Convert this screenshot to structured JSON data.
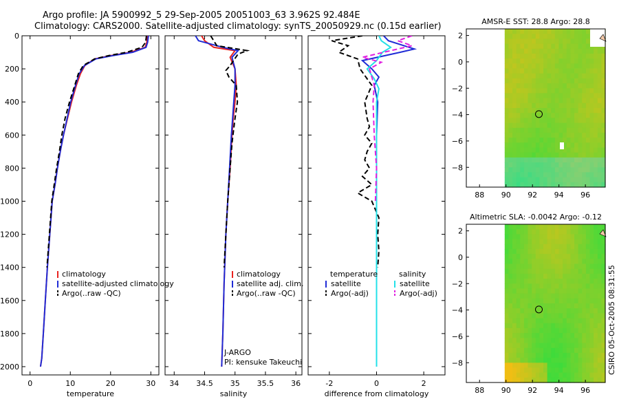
{
  "header": {
    "line1": "Argo profile: JA 5900992_5 29-Sep-2005 20051003_63 3.962S 92.484E",
    "line2": "Climatology: CARS2000. Satellite-adjusted climatology: synTS_20050929.nc (0.15d earlier)"
  },
  "side_stamp": "CSIRO 05-Oct-2005 08:31:55",
  "colors": {
    "climatology": "#e8221f",
    "satellite": "#1f2bd6",
    "argo": "#000000",
    "sal_satellite": "#22e0e8",
    "sal_argo": "#e020e0"
  },
  "chart_data": [
    {
      "type": "line",
      "panel": "temperature",
      "xlabel": "temperature",
      "ylabel": "",
      "xlim": [
        -2,
        32
      ],
      "ylim": [
        2050,
        0
      ],
      "y_inverted": true,
      "xticks": [
        0,
        10,
        20,
        30
      ],
      "yticks": [
        0,
        200,
        400,
        600,
        800,
        1000,
        1200,
        1400,
        1600,
        1800,
        2000
      ],
      "legend": [
        "climatology",
        "satellite-adjusted climatology",
        "Argo(..raw -QC)"
      ],
      "series": [
        {
          "name": "climatology",
          "style": "solid",
          "color": "#e8221f",
          "x": [
            29.1,
            29.0,
            28.6,
            25.0,
            20.0,
            16.0,
            13.6,
            12.5,
            11.5,
            10.3,
            9.3,
            8.3,
            7.5,
            6.8,
            6.2,
            5.5,
            4.9,
            4.3,
            3.8,
            3.3,
            2.9,
            2.6
          ],
          "y": [
            0,
            40,
            70,
            100,
            120,
            140,
            180,
            230,
            300,
            400,
            500,
            600,
            700,
            800,
            900,
            1000,
            1200,
            1400,
            1600,
            1800,
            1950,
            2000
          ]
        },
        {
          "name": "satellite-adjusted climatology",
          "style": "solid",
          "color": "#1f2bd6",
          "x": [
            29.4,
            29.2,
            28.8,
            25.5,
            20.5,
            16.3,
            13.5,
            12.2,
            11.3,
            10.1,
            9.2,
            8.3,
            7.5,
            6.8,
            6.2,
            5.5,
            4.9,
            4.3,
            3.8,
            3.3,
            2.9,
            2.6
          ],
          "y": [
            0,
            40,
            70,
            100,
            120,
            140,
            180,
            230,
            300,
            400,
            500,
            600,
            700,
            800,
            900,
            1000,
            1200,
            1400,
            1600,
            1800,
            1950,
            2000
          ]
        },
        {
          "name": "Argo(..raw -QC)",
          "style": "dashed",
          "color": "#000000",
          "x": [
            28.9,
            28.7,
            27.8,
            24.0,
            19.5,
            16.0,
            13.2,
            12.0,
            11.1,
            9.8,
            8.7,
            7.9,
            7.3,
            6.6,
            6.0,
            5.4,
            4.8,
            4.2
          ],
          "y": [
            0,
            40,
            70,
            100,
            120,
            140,
            180,
            230,
            300,
            400,
            500,
            600,
            700,
            800,
            900,
            1000,
            1200,
            1400
          ]
        }
      ]
    },
    {
      "type": "line",
      "panel": "salinity",
      "xlabel": "salinity",
      "ylabel": "",
      "xlim": [
        33.85,
        36.1
      ],
      "ylim": [
        2050,
        0
      ],
      "y_inverted": true,
      "xticks": [
        34,
        34.5,
        35,
        35.5,
        36
      ],
      "legend": [
        "climatology",
        "satellite adj. clim.",
        "Argo(..raw -QC)"
      ],
      "annotations": [
        "J-ARGO",
        "PI: kensuke Takeuchi"
      ],
      "series": [
        {
          "name": "climatology",
          "style": "solid",
          "color": "#e8221f",
          "x": [
            34.45,
            34.5,
            34.65,
            35.0,
            34.92,
            35.0,
            35.02,
            35.0,
            34.97,
            34.95,
            34.92,
            34.88,
            34.85,
            34.82,
            34.8,
            34.78
          ],
          "y": [
            0,
            30,
            70,
            90,
            130,
            200,
            300,
            400,
            500,
            600,
            800,
            1000,
            1200,
            1500,
            1800,
            2000
          ]
        },
        {
          "name": "satellite adj. clim.",
          "style": "solid",
          "color": "#1f2bd6",
          "x": [
            34.35,
            34.4,
            34.8,
            35.05,
            34.95,
            35.0,
            35.0,
            34.98,
            34.96,
            34.94,
            34.91,
            34.88,
            34.85,
            34.82,
            34.8,
            34.78
          ],
          "y": [
            0,
            30,
            70,
            90,
            130,
            200,
            300,
            400,
            500,
            600,
            800,
            1000,
            1200,
            1500,
            1800,
            2000
          ]
        },
        {
          "name": "Argo(..raw -QC)",
          "style": "dashed",
          "color": "#000000",
          "x": [
            34.6,
            34.7,
            35.2,
            35.05,
            34.92,
            34.85,
            34.9,
            35.02,
            35.04,
            35.0,
            34.95,
            34.92,
            34.88,
            34.85,
            34.82
          ],
          "y": [
            0,
            60,
            90,
            110,
            180,
            210,
            250,
            300,
            400,
            500,
            650,
            800,
            1000,
            1200,
            1400
          ]
        }
      ]
    },
    {
      "type": "line",
      "panel": "difference",
      "xlabel": "difference from climatology",
      "ylabel": "",
      "xlim": [
        -2.9,
        2.9
      ],
      "ylim": [
        2050,
        0
      ],
      "y_inverted": true,
      "xticks": [
        -2,
        0,
        2
      ],
      "legend": [
        "temperature",
        "satellite",
        "Argo(-adj)",
        "salinity",
        "satellite",
        "Argo(-adj)"
      ],
      "series": [
        {
          "name": "temperature satellite",
          "style": "solid",
          "color": "#1f2bd6",
          "x": [
            0.3,
            0.5,
            1.6,
            1.0,
            -0.6,
            -0.2,
            0.1,
            -0.1,
            0.05,
            0.0,
            0.0,
            0.0,
            0.0
          ],
          "y": [
            0,
            30,
            80,
            100,
            150,
            200,
            250,
            300,
            400,
            600,
            1000,
            1500,
            2000
          ]
        },
        {
          "name": "temperature Argo(-adj)",
          "style": "dashed",
          "color": "#000000",
          "x": [
            -0.6,
            -1.9,
            -1.2,
            -1.6,
            -0.8,
            -0.7,
            -0.2,
            -0.5,
            -0.4,
            -0.3,
            -0.5,
            -0.2,
            -0.4,
            -0.5,
            -0.3,
            -0.6,
            -0.2,
            -0.8,
            -0.2,
            0.1,
            0.05,
            0.1,
            0.05
          ],
          "y": [
            0,
            30,
            60,
            100,
            140,
            200,
            300,
            400,
            500,
            550,
            600,
            650,
            700,
            750,
            800,
            850,
            900,
            950,
            1000,
            1100,
            1200,
            1300,
            1400
          ]
        },
        {
          "name": "salinity satellite",
          "style": "solid",
          "color": "#22e0e8",
          "x": [
            0.1,
            0.2,
            0.6,
            0.25,
            0.0,
            -0.4,
            -0.1,
            0.1,
            0.0,
            0.0,
            0.0,
            0.0
          ],
          "y": [
            0,
            30,
            70,
            100,
            150,
            200,
            260,
            320,
            400,
            800,
            1500,
            2000
          ]
        },
        {
          "name": "salinity Argo(-adj)",
          "style": "dashed",
          "color": "#e020e0",
          "x": [
            1.5,
            0.9,
            1.5,
            0.3,
            -0.6,
            0.2,
            -0.3,
            -0.1,
            -0.15,
            -0.1,
            0.0,
            -0.05
          ],
          "y": [
            0,
            30,
            60,
            100,
            130,
            160,
            200,
            300,
            400,
            600,
            800,
            1000
          ]
        }
      ]
    },
    {
      "type": "heatmap",
      "panel": "map-sst",
      "title": "AMSR-E SST: 28.8  Argo: 28.8",
      "xlim": [
        87,
        97.5
      ],
      "ylim": [
        -9.5,
        2.5
      ],
      "xticks": [
        88,
        90,
        92,
        94,
        96
      ],
      "yticks": [
        2,
        0,
        -2,
        -4,
        -6,
        -8
      ],
      "marker": {
        "lon": 92.484,
        "lat": -3.962
      }
    },
    {
      "type": "heatmap",
      "panel": "map-sla",
      "title": "Altimetric SLA: -0.0042  Argo: -0.12",
      "xlim": [
        87,
        97.5
      ],
      "ylim": [
        -9.5,
        2.5
      ],
      "xticks": [
        88,
        90,
        92,
        94,
        96
      ],
      "yticks": [
        2,
        0,
        -2,
        -4,
        -6,
        -8
      ],
      "marker": {
        "lon": 92.484,
        "lat": -3.962
      }
    }
  ]
}
